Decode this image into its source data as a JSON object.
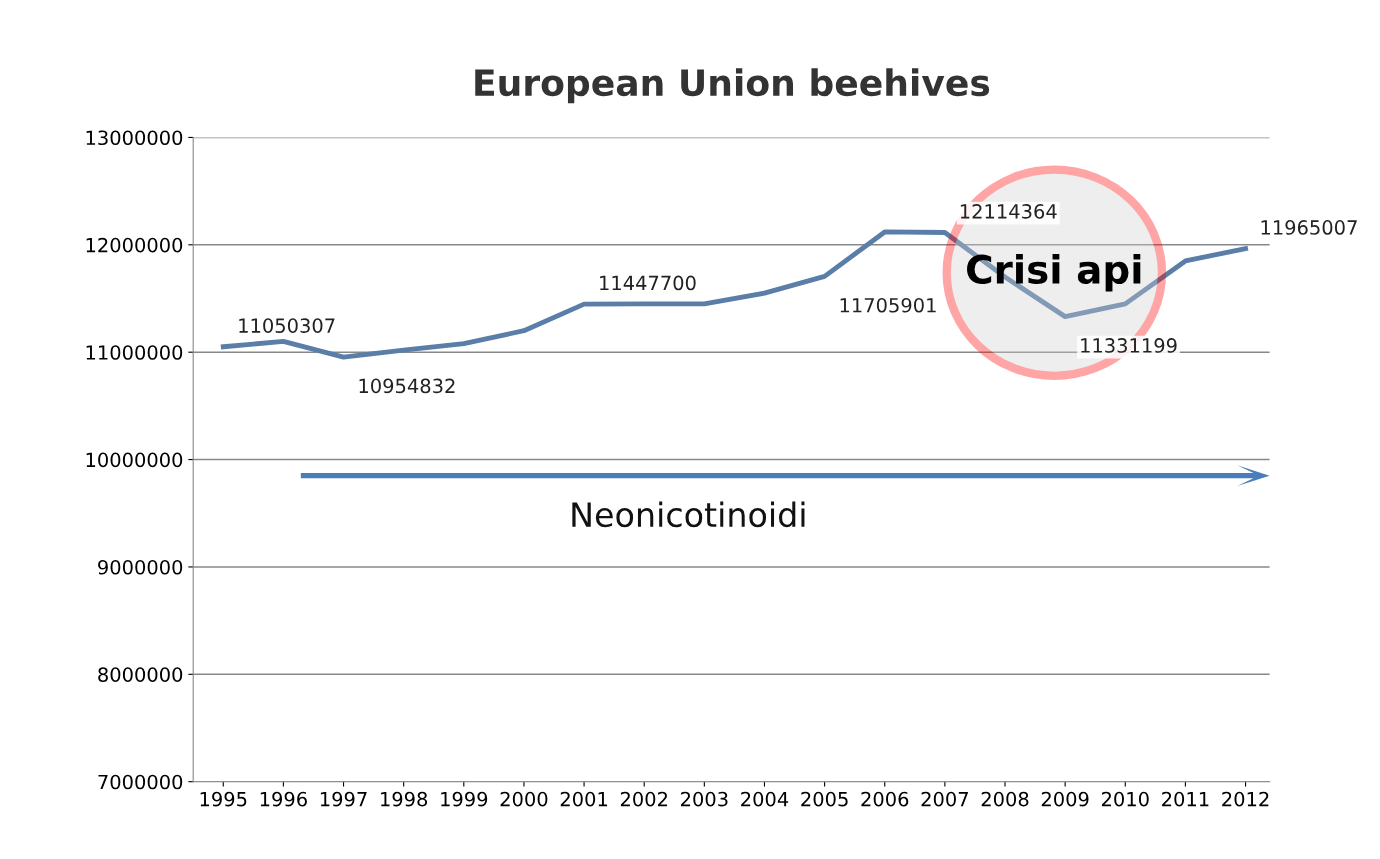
{
  "chart_data": {
    "type": "line",
    "title": "European Union beehives",
    "categories": [
      "1995",
      "1996",
      "1997",
      "1998",
      "1999",
      "2000",
      "2001",
      "2002",
      "2003",
      "2004",
      "2005",
      "2006",
      "2007",
      "2008",
      "2009",
      "2010",
      "2011",
      "2012"
    ],
    "series": [
      {
        "color": "#5a7ea8",
        "values": [
          11050307,
          11100000,
          10954832,
          11020000,
          11080000,
          11200000,
          11447700,
          11450000,
          11450000,
          11550000,
          11705901,
          12120000,
          12114364,
          11700000,
          11331199,
          11450000,
          11850000,
          11965007
        ],
        "value_labels": [
          "11050307",
          null,
          "10954832",
          null,
          null,
          null,
          "11447700",
          null,
          null,
          null,
          "11705901",
          null,
          "12114364",
          null,
          "11331199",
          null,
          null,
          "11965007"
        ]
      }
    ],
    "ylim": [
      7000000,
      13000000
    ],
    "yticks": [
      7000000,
      8000000,
      9000000,
      10000000,
      11000000,
      12000000,
      13000000
    ],
    "grid": "y",
    "legend": false,
    "marker": "none",
    "line_style": "solid",
    "annotations": [
      "Neonicotinoidi",
      "Crisi api"
    ]
  }
}
